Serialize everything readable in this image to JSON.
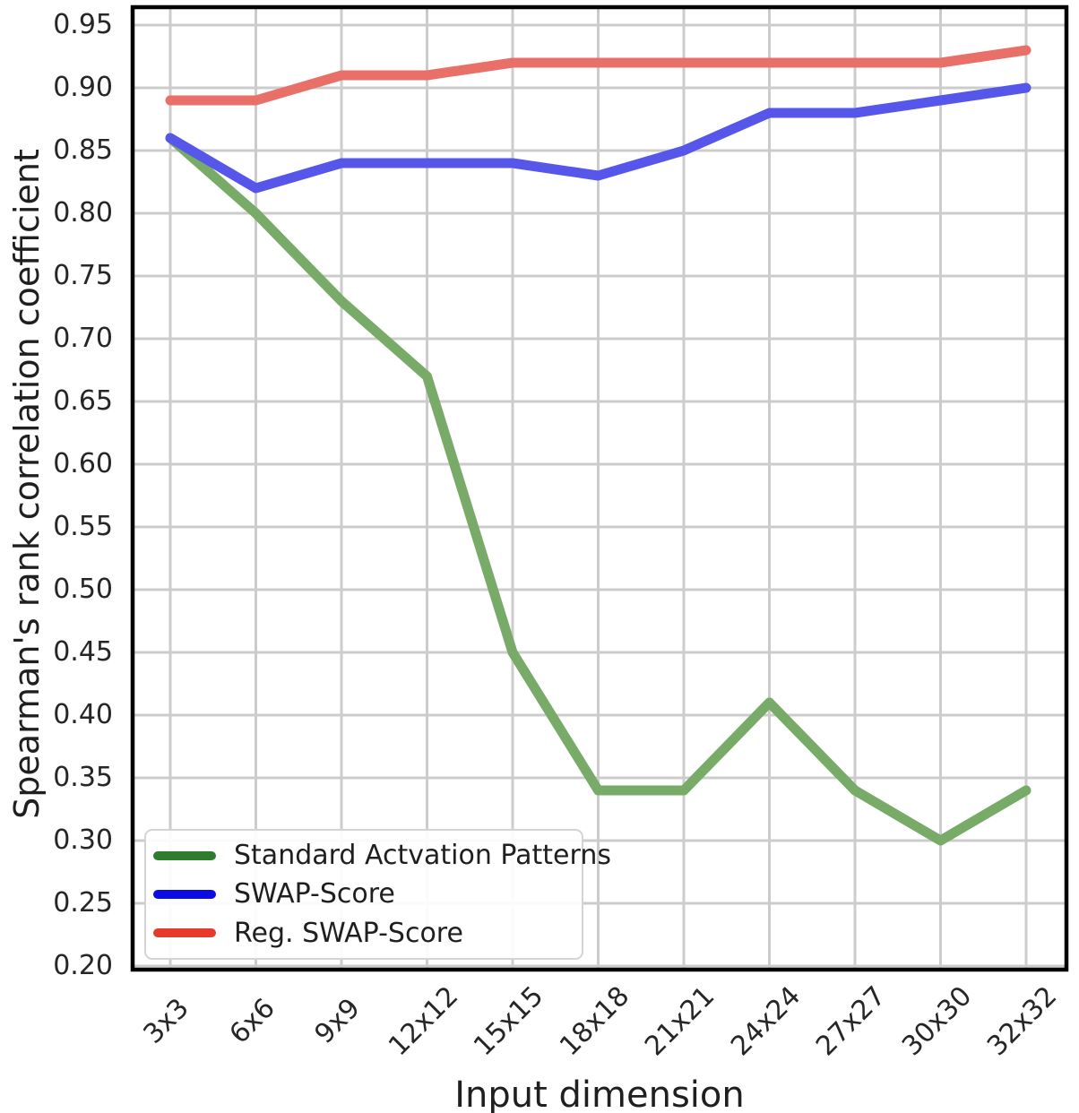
{
  "figure": {
    "background": "#ffffff",
    "grid_color": "#cccccc",
    "spine_color": "#000000",
    "tick_label_color": "#262626"
  },
  "chart_data": {
    "type": "line",
    "title": "",
    "xlabel": "Input dimension",
    "ylabel": "Spearman's rank correlation coefficient",
    "categories": [
      "3x3",
      "6x6",
      "9x9",
      "12x12",
      "15x15",
      "18x18",
      "21x21",
      "24x24",
      "27x27",
      "30x30",
      "32x32"
    ],
    "y_ticks": [
      0.95,
      0.9,
      0.85,
      0.8,
      0.75,
      0.7,
      0.65,
      0.6,
      0.55,
      0.5,
      0.45,
      0.4,
      0.35,
      0.3,
      0.25,
      0.2
    ],
    "ylim": [
      0.197,
      0.964
    ],
    "grid": true,
    "legend_position": "lower-left",
    "series": [
      {
        "name": "Standard Actvation Patterns",
        "line_color": "#77ab67",
        "legend_color": "#2e7d2e",
        "values": [
          0.86,
          0.8,
          0.73,
          0.67,
          0.45,
          0.34,
          0.34,
          0.41,
          0.34,
          0.3,
          0.34
        ]
      },
      {
        "name": "SWAP-Score",
        "line_color": "#5656ea",
        "legend_color": "#0b0be6",
        "values": [
          0.86,
          0.82,
          0.84,
          0.84,
          0.84,
          0.83,
          0.85,
          0.88,
          0.88,
          0.89,
          0.9
        ]
      },
      {
        "name": "Reg. SWAP-Score",
        "line_color": "#e87068",
        "legend_color": "#e63b2a",
        "values": [
          0.89,
          0.89,
          0.91,
          0.91,
          0.92,
          0.92,
          0.92,
          0.92,
          0.92,
          0.92,
          0.93
        ]
      }
    ]
  }
}
